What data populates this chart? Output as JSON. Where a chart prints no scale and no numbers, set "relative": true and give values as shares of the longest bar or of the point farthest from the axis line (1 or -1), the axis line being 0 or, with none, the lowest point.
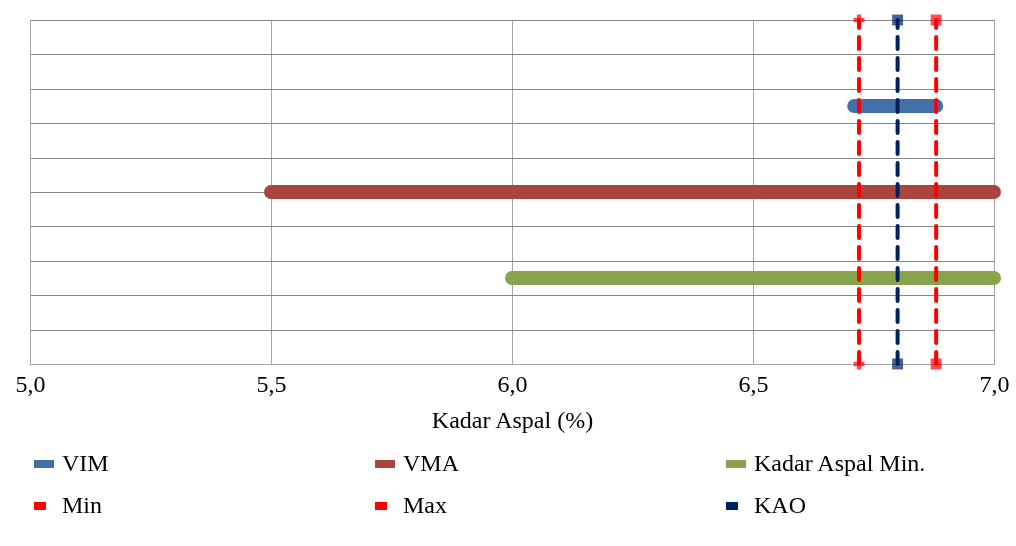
{
  "chart_data": {
    "type": "line",
    "xlabel": "Kadar Aspal (%)",
    "xlim": [
      5,
      7
    ],
    "xticks": [
      {
        "value": 5,
        "label": "5,0"
      },
      {
        "value": 5.5,
        "label": "5,5"
      },
      {
        "value": 6,
        "label": "6,0"
      },
      {
        "value": 6.5,
        "label": "6,5"
      },
      {
        "value": 7,
        "label": "7,0"
      }
    ],
    "relative": true,
    "grid": true,
    "legend": "bottom",
    "series": [
      {
        "name": "VIM",
        "color": "#4470a8",
        "x": [
          6.71,
          6.88
        ],
        "values": [
          0.75,
          0.75
        ],
        "line_style": "solid",
        "marker": "none"
      },
      {
        "name": "VMA",
        "color": "#a94441",
        "x": [
          5.5,
          7
        ],
        "values": [
          0.5,
          0.5
        ],
        "line_style": "solid",
        "marker": "none"
      },
      {
        "name": "Kadar Aspal Min.",
        "color": "#87a34b",
        "x": [
          6,
          7
        ],
        "values": [
          0.25,
          0.25
        ],
        "line_style": "solid",
        "marker": "none"
      },
      {
        "name": "Min",
        "color": "#ff0000",
        "x": [
          6.72,
          6.72
        ],
        "values": [
          0,
          1
        ],
        "line_style": "dashed",
        "marker": "cross"
      },
      {
        "name": "Max",
        "color": "#ff0000",
        "x": [
          6.88,
          6.88
        ],
        "values": [
          0,
          1
        ],
        "line_style": "dashed",
        "marker": "square"
      },
      {
        "name": "KAO",
        "color": "#002060",
        "x": [
          6.8,
          6.8
        ],
        "values": [
          0,
          1
        ],
        "line_style": "dashed",
        "marker": "square"
      }
    ]
  }
}
